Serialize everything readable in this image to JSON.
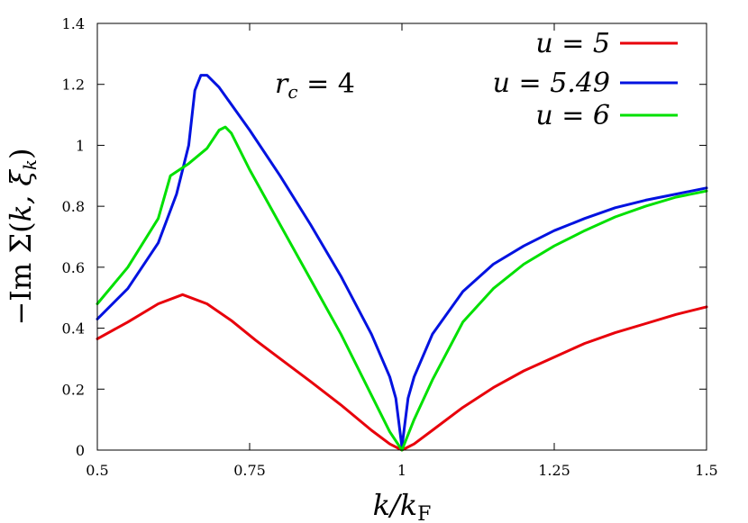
{
  "chart_data": {
    "type": "line",
    "xlabel": "k/kF",
    "ylabel": "−Im Σ(k, ξk)",
    "xlim": [
      0.5,
      1.5
    ],
    "ylim": [
      0,
      1.4
    ],
    "xticks": [
      0.5,
      0.75,
      1,
      1.25,
      1.5
    ],
    "xtick_labels": [
      "0.5",
      "0.75",
      "1",
      "1.25",
      "1.5"
    ],
    "yticks": [
      0,
      0.2,
      0.4,
      0.6,
      0.8,
      1,
      1.2,
      1.4
    ],
    "ytick_labels": [
      "0",
      "0.2",
      "0.4",
      "0.6",
      "0.8",
      "1",
      "1.2",
      "1.4"
    ],
    "grid": false,
    "legend_position": "top-right",
    "annotation": "rc = 4",
    "series": [
      {
        "name": "u = 5",
        "color": "#e8000b",
        "x": [
          0.5,
          0.55,
          0.6,
          0.64,
          0.68,
          0.72,
          0.76,
          0.8,
          0.85,
          0.9,
          0.95,
          0.98,
          1.0,
          1.02,
          1.05,
          1.1,
          1.15,
          1.2,
          1.25,
          1.3,
          1.35,
          1.4,
          1.45,
          1.5
        ],
        "y": [
          0.365,
          0.42,
          0.48,
          0.51,
          0.48,
          0.425,
          0.36,
          0.3,
          0.225,
          0.148,
          0.065,
          0.02,
          0.0,
          0.02,
          0.065,
          0.14,
          0.205,
          0.26,
          0.305,
          0.35,
          0.385,
          0.415,
          0.445,
          0.47
        ]
      },
      {
        "name": "u = 5.49",
        "color": "#0012e0",
        "x": [
          0.5,
          0.55,
          0.6,
          0.63,
          0.65,
          0.66,
          0.67,
          0.68,
          0.7,
          0.75,
          0.8,
          0.85,
          0.9,
          0.95,
          0.98,
          0.99,
          1.0,
          1.01,
          1.02,
          1.05,
          1.1,
          1.15,
          1.2,
          1.25,
          1.3,
          1.35,
          1.4,
          1.45,
          1.5
        ],
        "y": [
          0.43,
          0.53,
          0.68,
          0.84,
          1.0,
          1.18,
          1.23,
          1.23,
          1.19,
          1.05,
          0.9,
          0.74,
          0.57,
          0.38,
          0.24,
          0.17,
          0.01,
          0.17,
          0.24,
          0.38,
          0.52,
          0.61,
          0.67,
          0.72,
          0.76,
          0.795,
          0.82,
          0.84,
          0.86
        ]
      },
      {
        "name": "u = 6",
        "color": "#00e000",
        "x": [
          0.5,
          0.55,
          0.6,
          0.62,
          0.65,
          0.68,
          0.7,
          0.71,
          0.72,
          0.75,
          0.8,
          0.85,
          0.9,
          0.95,
          0.98,
          1.0,
          1.02,
          1.05,
          1.1,
          1.15,
          1.2,
          1.25,
          1.3,
          1.35,
          1.4,
          1.45,
          1.5
        ],
        "y": [
          0.48,
          0.6,
          0.76,
          0.9,
          0.94,
          0.99,
          1.05,
          1.06,
          1.04,
          0.92,
          0.74,
          0.56,
          0.38,
          0.18,
          0.06,
          0.0,
          0.1,
          0.23,
          0.42,
          0.53,
          0.61,
          0.67,
          0.72,
          0.765,
          0.8,
          0.83,
          0.85
        ]
      }
    ]
  }
}
